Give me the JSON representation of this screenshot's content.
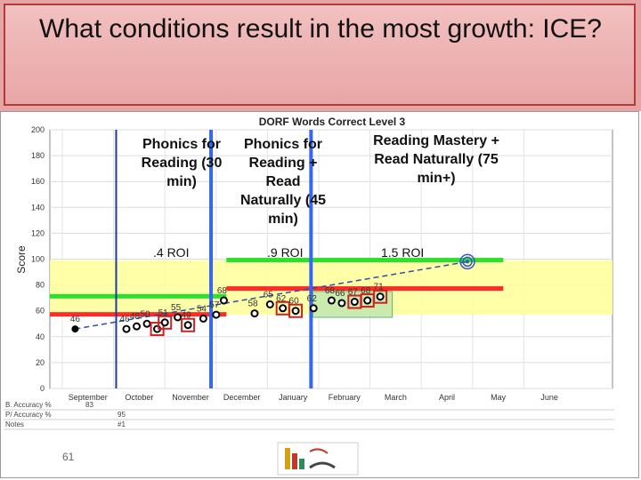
{
  "slide": {
    "title": "What conditions result in the most growth: ICE?",
    "page_number": "61"
  },
  "annotations": {
    "phase1_text": "Phonics for Reading (30 min)",
    "phase2_text": "Phonics for Reading + Read Naturally (45 min)",
    "phase3_text": "Reading Mastery + Read Naturally (75 min+)",
    "phase1_roi": ".4 ROI",
    "phase2_roi": ".9 ROI",
    "phase3_roi": "1.5 ROI"
  },
  "footer_rows": [
    {
      "label": "B. Accuracy %",
      "value": "83"
    },
    {
      "label": "P/ Accuracy %",
      "value": "95"
    },
    {
      "label": "Notes",
      "value": "#1"
    }
  ],
  "colors": {
    "benchmark_green": "#2ee02e",
    "band_red": "#ff2b2b",
    "band_yellow": "#ffff99",
    "phase_line": "#3366ff",
    "aimline": "#2c4fa8",
    "highlight_box": "#cc2222"
  },
  "chart_data": {
    "type": "scatter",
    "title": "DORF Words Correct Level 3",
    "ylabel": "Score",
    "ylim": [
      0,
      200
    ],
    "yticks": [
      0,
      20,
      40,
      60,
      80,
      100,
      120,
      140,
      160,
      180,
      200
    ],
    "months": [
      "September",
      "October",
      "November",
      "December",
      "January",
      "February",
      "March",
      "April",
      "May",
      "June"
    ],
    "grid": true,
    "goal_score": 98,
    "points": [
      {
        "month_pos": 0.25,
        "y": 46,
        "label": "46",
        "boxed": false
      },
      {
        "month_pos": 1.25,
        "y": 46,
        "label": "46",
        "boxed": false
      },
      {
        "month_pos": 1.45,
        "y": 48,
        "label": "48",
        "boxed": false
      },
      {
        "month_pos": 1.65,
        "y": 50,
        "label": "50",
        "boxed": false
      },
      {
        "month_pos": 1.85,
        "y": 46,
        "label": "",
        "boxed": true
      },
      {
        "month_pos": 2.0,
        "y": 51,
        "label": "51",
        "boxed": true
      },
      {
        "month_pos": 2.25,
        "y": 55,
        "label": "55",
        "boxed": false
      },
      {
        "month_pos": 2.45,
        "y": 49,
        "label": "49",
        "boxed": true
      },
      {
        "month_pos": 2.75,
        "y": 54,
        "label": "54",
        "boxed": false
      },
      {
        "month_pos": 3.0,
        "y": 57,
        "label": "57",
        "boxed": false
      },
      {
        "month_pos": 3.15,
        "y": 68,
        "label": "68",
        "boxed": false
      },
      {
        "month_pos": 3.75,
        "y": 58,
        "label": "58",
        "boxed": false
      },
      {
        "month_pos": 4.05,
        "y": 65,
        "label": "65",
        "boxed": false
      },
      {
        "month_pos": 4.3,
        "y": 62,
        "label": "62",
        "boxed": true
      },
      {
        "month_pos": 4.55,
        "y": 60,
        "label": "60",
        "boxed": true
      },
      {
        "month_pos": 4.9,
        "y": 62,
        "label": "62",
        "boxed": false
      },
      {
        "month_pos": 5.25,
        "y": 68,
        "label": "68",
        "boxed": false
      },
      {
        "month_pos": 5.45,
        "y": 66,
        "label": "66",
        "boxed": false
      },
      {
        "month_pos": 5.7,
        "y": 67,
        "label": "67",
        "boxed": true
      },
      {
        "month_pos": 5.95,
        "y": 68,
        "label": "68",
        "boxed": true
      },
      {
        "month_pos": 6.2,
        "y": 71,
        "label": "71",
        "boxed": true
      }
    ]
  }
}
